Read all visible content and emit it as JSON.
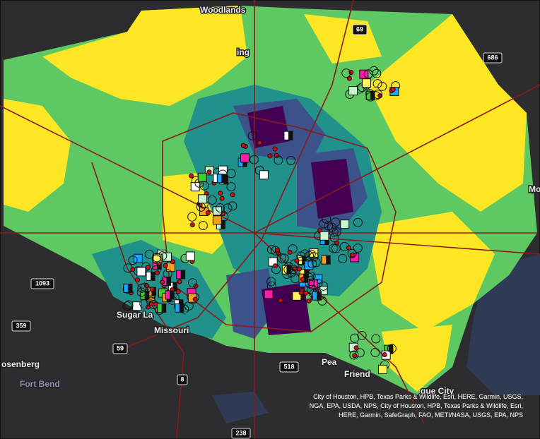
{
  "map": {
    "place_labels": [
      "Woodlands",
      "ing",
      "Sugar La",
      "Missouri",
      "osenberg",
      "Fort Bend",
      "Pea",
      "Friend",
      "gue City",
      "Mo"
    ],
    "road_shields": [
      "69",
      "686",
      "1093",
      "359",
      "59",
      "518",
      "8",
      "238"
    ],
    "attribution": [
      "City of Houston, HPB, Texas Parks & Wildlife, Esri, HERE, Garmin, USGS,",
      "NGA, EPA, USDA, NPS, City of Houston, HPB, Texas Parks & Wildlife, Esri,",
      "HERE, Garmin, SafeGraph, FAO, METI/NASA, USGS, EPA, NPS"
    ]
  }
}
